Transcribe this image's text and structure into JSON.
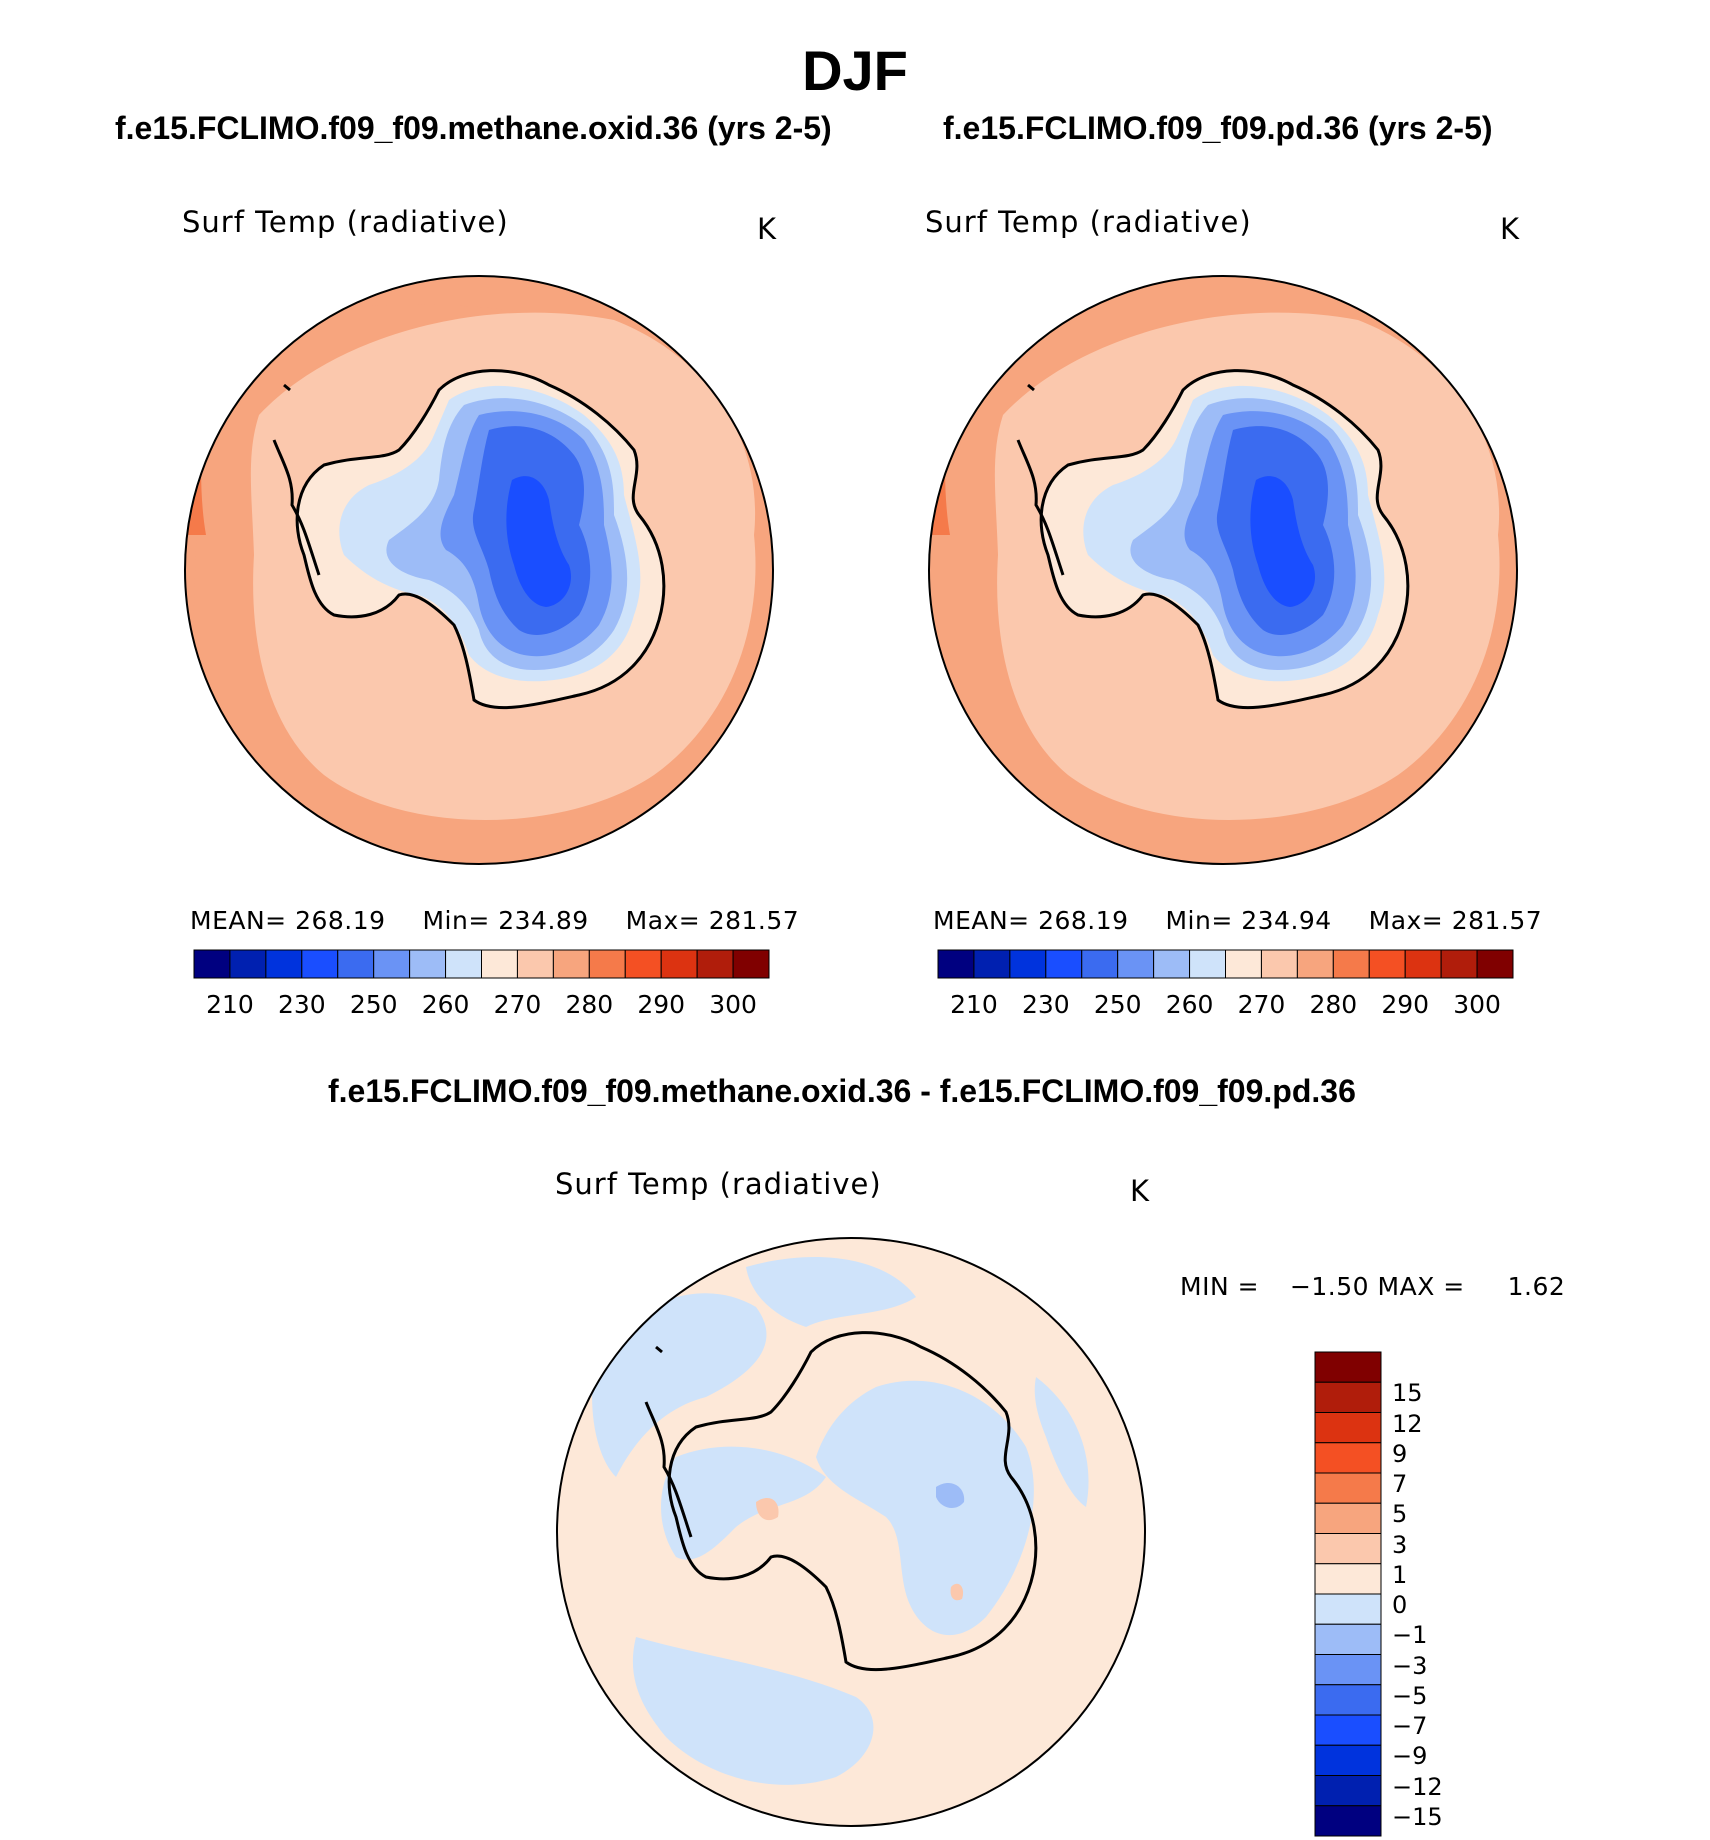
{
  "title": "DJF",
  "panel_left": {
    "case": "f.e15.FCLIMO.f09_f09.methane.oxid.36 (yrs 2-5)",
    "variable": "Surf Temp (radiative)",
    "units": "K",
    "mean_label": "MEAN=",
    "mean": "268.19",
    "min_label": "Min=",
    "min": "234.89",
    "max_label": "Max=",
    "max": "281.57"
  },
  "panel_right": {
    "case": "f.e15.FCLIMO.f09_f09.pd.36 (yrs 2-5)",
    "variable": "Surf Temp (radiative)",
    "units": "K",
    "mean_label": "MEAN=",
    "mean": "268.19",
    "min_label": "Min=",
    "min": "234.94",
    "max_label": "Max=",
    "max": "281.57"
  },
  "panel_diff": {
    "case": "f.e15.FCLIMO.f09_f09.methane.oxid.36 - f.e15.FCLIMO.f09_f09.pd.36",
    "variable": "Surf Temp (radiative)",
    "units": "K",
    "min_label": "MIN =",
    "min": "−1.50",
    "max_label": "MAX =",
    "max": "1.62"
  },
  "abs_colorbar": {
    "colors": [
      "#000080",
      "#0020b0",
      "#0033dd",
      "#1a4eff",
      "#3b6bf0",
      "#6a93f5",
      "#9dbcf7",
      "#cfe3fa",
      "#fde8d8",
      "#fbc8ad",
      "#f7a57e",
      "#f57a4a",
      "#f45023",
      "#dc3311",
      "#b01d0b",
      "#800000"
    ],
    "labels": [
      "210",
      "230",
      "250",
      "260",
      "270",
      "280",
      "290",
      "300"
    ]
  },
  "diff_colorbar": {
    "colors_top_to_bottom": [
      "#800000",
      "#b01d0b",
      "#dc3311",
      "#f45023",
      "#f57a4a",
      "#f7a57e",
      "#fbc8ad",
      "#fde8d8",
      "#cfe3fa",
      "#9dbcf7",
      "#6a93f5",
      "#3b6bf0",
      "#1a4eff",
      "#0033dd",
      "#0020b0",
      "#000080"
    ],
    "labels": [
      "15",
      "12",
      "9",
      "7",
      "5",
      "3",
      "1",
      "0",
      "−1",
      "−3",
      "−5",
      "−7",
      "−9",
      "−12",
      "−15"
    ]
  }
}
